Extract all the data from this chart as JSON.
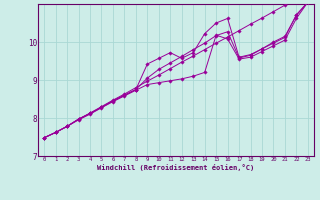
{
  "xlabel": "Windchill (Refroidissement éolien,°C)",
  "bg_color": "#cdede8",
  "line_color": "#990099",
  "grid_color": "#aad8d4",
  "axis_color": "#660066",
  "xlim": [
    -0.5,
    23.5
  ],
  "ylim": [
    7.0,
    11.0
  ],
  "xticks": [
    0,
    1,
    2,
    3,
    4,
    5,
    6,
    7,
    8,
    9,
    10,
    11,
    12,
    13,
    14,
    15,
    16,
    17,
    18,
    19,
    20,
    21,
    22,
    23
  ],
  "yticks": [
    7,
    8,
    9,
    10
  ],
  "series": [
    {
      "x": [
        0,
        1,
        2,
        3,
        4,
        5,
        6,
        7,
        8,
        9,
        10,
        11,
        12,
        13,
        14,
        15,
        16,
        17,
        18,
        19,
        20,
        21,
        22,
        23
      ],
      "y": [
        7.48,
        7.62,
        7.78,
        7.97,
        8.13,
        8.3,
        8.47,
        8.63,
        8.8,
        8.97,
        9.13,
        9.3,
        9.47,
        9.63,
        9.8,
        9.97,
        10.13,
        10.3,
        10.47,
        10.63,
        10.8,
        10.97,
        11.13,
        11.05
      ]
    },
    {
      "x": [
        0,
        1,
        2,
        3,
        4,
        5,
        6,
        7,
        8,
        9,
        10,
        11,
        12,
        13,
        14,
        15,
        16,
        17,
        18,
        19,
        20,
        21,
        22,
        23
      ],
      "y": [
        7.48,
        7.62,
        7.78,
        7.95,
        8.1,
        8.27,
        8.43,
        8.58,
        8.73,
        8.88,
        8.93,
        8.98,
        9.03,
        9.1,
        9.2,
        10.18,
        10.08,
        9.55,
        9.6,
        9.75,
        9.9,
        10.05,
        10.62,
        11.05
      ]
    },
    {
      "x": [
        0,
        1,
        2,
        3,
        4,
        5,
        6,
        7,
        8,
        9,
        10,
        11,
        12,
        13,
        14,
        15,
        16,
        17,
        18,
        19,
        20,
        21,
        22,
        23
      ],
      "y": [
        7.48,
        7.62,
        7.78,
        7.97,
        8.12,
        8.28,
        8.45,
        8.6,
        8.75,
        9.42,
        9.57,
        9.72,
        9.57,
        9.72,
        10.22,
        10.5,
        10.62,
        9.6,
        9.67,
        9.82,
        9.97,
        10.12,
        10.72,
        11.05
      ]
    },
    {
      "x": [
        0,
        1,
        2,
        3,
        4,
        5,
        6,
        7,
        8,
        9,
        10,
        11,
        12,
        13,
        14,
        15,
        16,
        17,
        18,
        19,
        20,
        21,
        22,
        23
      ],
      "y": [
        7.48,
        7.62,
        7.78,
        7.97,
        8.12,
        8.28,
        8.45,
        8.6,
        8.75,
        9.05,
        9.28,
        9.45,
        9.62,
        9.8,
        9.97,
        10.17,
        10.27,
        9.58,
        9.65,
        9.82,
        10.0,
        10.15,
        10.7,
        11.05
      ]
    }
  ]
}
